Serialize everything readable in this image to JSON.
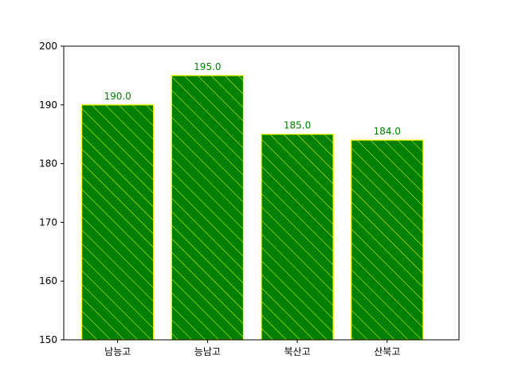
{
  "chart_data": {
    "type": "bar",
    "categories": [
      "남능고",
      "능남고",
      "북산고",
      "산북고"
    ],
    "values": [
      190.0,
      195.0,
      185.0,
      184.0
    ],
    "data_labels": [
      "190.0",
      "195.0",
      "185.0",
      "184.0"
    ],
    "y_ticks": [
      150,
      160,
      170,
      180,
      190,
      200
    ],
    "ylim": [
      150,
      200
    ],
    "title": "",
    "xlabel": "",
    "ylabel": "",
    "grid": false,
    "hatch": "diagonal",
    "colors": {
      "bar_fill": "#008000",
      "bar_edge": "#ffff00",
      "data_label": "#008000",
      "axis": "#000000"
    }
  }
}
